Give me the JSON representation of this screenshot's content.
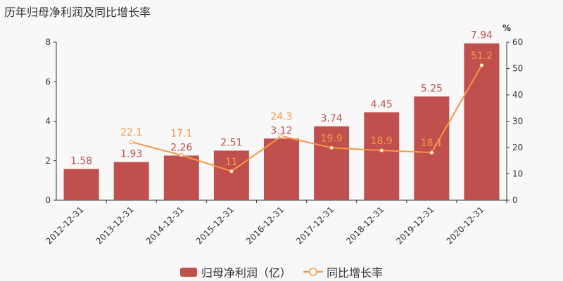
{
  "title": "历年归母净利润及同比增长率",
  "chart_data": {
    "type": "bar+line",
    "title": "历年归母净利润及同比增长率",
    "categories": [
      "2012-12-31",
      "2013-12-31",
      "2014-12-31",
      "2015-12-31",
      "2016-12-31",
      "2017-12-31",
      "2018-12-31",
      "2019-12-31",
      "2020-12-31"
    ],
    "series": [
      {
        "name": "归母净利润（亿）",
        "type": "bar",
        "axis": "left",
        "color": "#c0504d",
        "values": [
          1.58,
          1.93,
          2.26,
          2.51,
          3.12,
          3.74,
          4.45,
          5.25,
          7.94
        ]
      },
      {
        "name": "同比增长率",
        "type": "line",
        "axis": "right",
        "color": "#f79646",
        "values": [
          null,
          22.1,
          17.1,
          11,
          24.3,
          19.9,
          18.9,
          18.1,
          51.2
        ]
      }
    ],
    "left_axis": {
      "ylim": [
        0,
        8
      ],
      "ticks": [
        "0",
        "2",
        "4",
        "6",
        "8"
      ]
    },
    "right_axis": {
      "label": "%",
      "ylim": [
        0,
        60
      ],
      "ticks": [
        "0",
        "10",
        "20",
        "30",
        "40",
        "50",
        "60"
      ]
    },
    "legend_placement": "bottom"
  }
}
